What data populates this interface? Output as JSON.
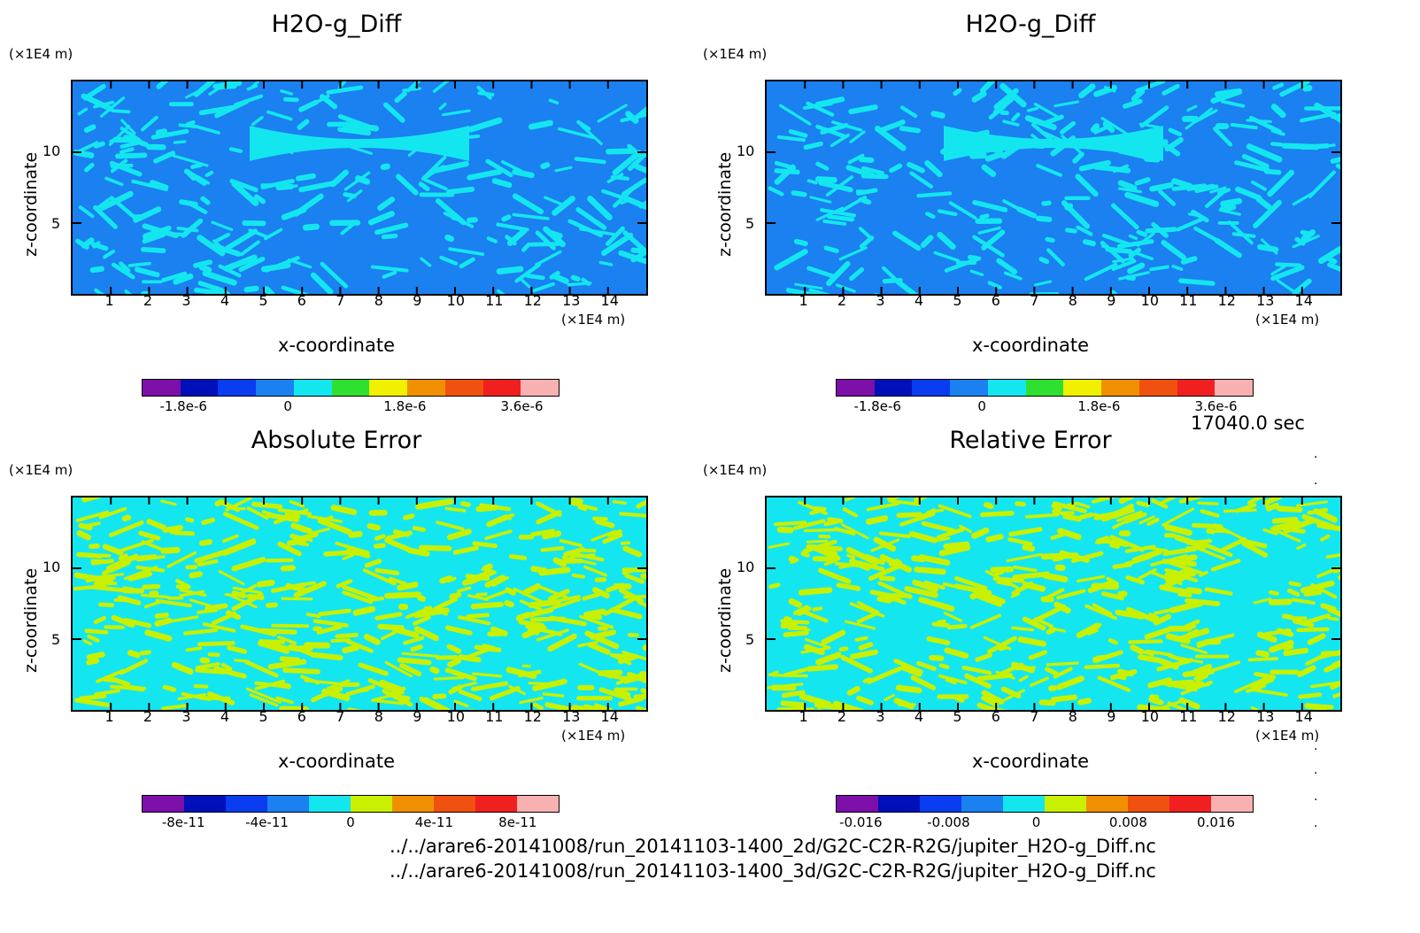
{
  "chart_data": [
    {
      "type": "heatmap",
      "title": "H2O-g_Diff",
      "xlabel": "x-coordinate",
      "ylabel": "z-coordinate",
      "x_unit": "(×1E4 m)",
      "y_unit": "(×1E4 m)",
      "x_ticks": [
        "1",
        "2",
        "3",
        "4",
        "5",
        "6",
        "7",
        "8",
        "9",
        "10",
        "11",
        "12",
        "13",
        "14"
      ],
      "y_ticks": [
        "5",
        "10"
      ],
      "xlim": [
        0,
        15
      ],
      "ylim": [
        0,
        15
      ],
      "colorbar": {
        "colors": [
          "#7b0fa8",
          "#0010b8",
          "#0a3cf0",
          "#1b80f0",
          "#14e6f0",
          "#30e030",
          "#f0f000",
          "#f09000",
          "#f05010",
          "#f02020",
          "#f8b0b0"
        ],
        "tick_labels": [
          "-1.8e-6",
          "0",
          "1.8e-6",
          "3.6e-6"
        ],
        "tick_positions": [
          0.1,
          0.35,
          0.63,
          0.91
        ]
      },
      "dominant_levels": [
        "#1b80f0",
        "#14e6f0"
      ]
    },
    {
      "type": "heatmap",
      "title": "H2O-g_Diff",
      "xlabel": "x-coordinate",
      "ylabel": "z-coordinate",
      "x_unit": "(×1E4 m)",
      "y_unit": "(×1E4 m)",
      "x_ticks": [
        "1",
        "2",
        "3",
        "4",
        "5",
        "6",
        "7",
        "8",
        "9",
        "10",
        "11",
        "12",
        "13",
        "14"
      ],
      "y_ticks": [
        "5",
        "10"
      ],
      "xlim": [
        0,
        15
      ],
      "ylim": [
        0,
        15
      ],
      "colorbar": {
        "colors": [
          "#7b0fa8",
          "#0010b8",
          "#0a3cf0",
          "#1b80f0",
          "#14e6f0",
          "#30e030",
          "#f0f000",
          "#f09000",
          "#f05010",
          "#f02020",
          "#f8b0b0"
        ],
        "tick_labels": [
          "-1.8e-6",
          "0",
          "1.8e-6",
          "3.6e-6"
        ],
        "tick_positions": [
          0.1,
          0.35,
          0.63,
          0.91
        ]
      },
      "dominant_levels": [
        "#1b80f0",
        "#14e6f0"
      ]
    },
    {
      "type": "heatmap",
      "title": "Absolute Error",
      "xlabel": "x-coordinate",
      "ylabel": "z-coordinate",
      "x_unit": "(×1E4 m)",
      "y_unit": "(×1E4 m)",
      "x_ticks": [
        "1",
        "2",
        "3",
        "4",
        "5",
        "6",
        "7",
        "8",
        "9",
        "10",
        "11",
        "12",
        "13",
        "14"
      ],
      "y_ticks": [
        "5",
        "10"
      ],
      "xlim": [
        0,
        15
      ],
      "ylim": [
        0,
        15
      ],
      "colorbar": {
        "colors": [
          "#7b0fa8",
          "#0010b8",
          "#0a3cf0",
          "#1b80f0",
          "#14e6f0",
          "#c8f000",
          "#f09000",
          "#f05010",
          "#f02020",
          "#f8b0b0"
        ],
        "tick_labels": [
          "-8e-11",
          "-4e-11",
          "0",
          "4e-11",
          "8e-11"
        ],
        "tick_positions": [
          0.1,
          0.3,
          0.5,
          0.7,
          0.9
        ]
      },
      "dominant_levels": [
        "#14e6f0",
        "#c8f000"
      ]
    },
    {
      "type": "heatmap",
      "title": "Relative Error",
      "xlabel": "x-coordinate",
      "ylabel": "z-coordinate",
      "x_unit": "(×1E4 m)",
      "y_unit": "(×1E4 m)",
      "x_ticks": [
        "1",
        "2",
        "3",
        "4",
        "5",
        "6",
        "7",
        "8",
        "9",
        "10",
        "11",
        "12",
        "13",
        "14"
      ],
      "y_ticks": [
        "5",
        "10"
      ],
      "xlim": [
        0,
        15
      ],
      "ylim": [
        0,
        15
      ],
      "colorbar": {
        "colors": [
          "#7b0fa8",
          "#0010b8",
          "#0a3cf0",
          "#1b80f0",
          "#14e6f0",
          "#c8f000",
          "#f09000",
          "#f05010",
          "#f02020",
          "#f8b0b0"
        ],
        "tick_labels": [
          "-0.016",
          "-0.008",
          "0",
          "0.008",
          "0.016"
        ],
        "tick_positions": [
          0.06,
          0.27,
          0.48,
          0.7,
          0.91
        ]
      },
      "dominant_levels": [
        "#14e6f0",
        "#c8f000"
      ]
    }
  ],
  "time_label": "17040.0 sec",
  "files": [
    "../../arare6-20141008/run_20141103-1400_2d/G2C-C2R-R2G/jupiter_H2O-g_Diff.nc",
    "../../arare6-20141008/run_20141103-1400_3d/G2C-C2R-R2G/jupiter_H2O-g_Diff.nc"
  ]
}
